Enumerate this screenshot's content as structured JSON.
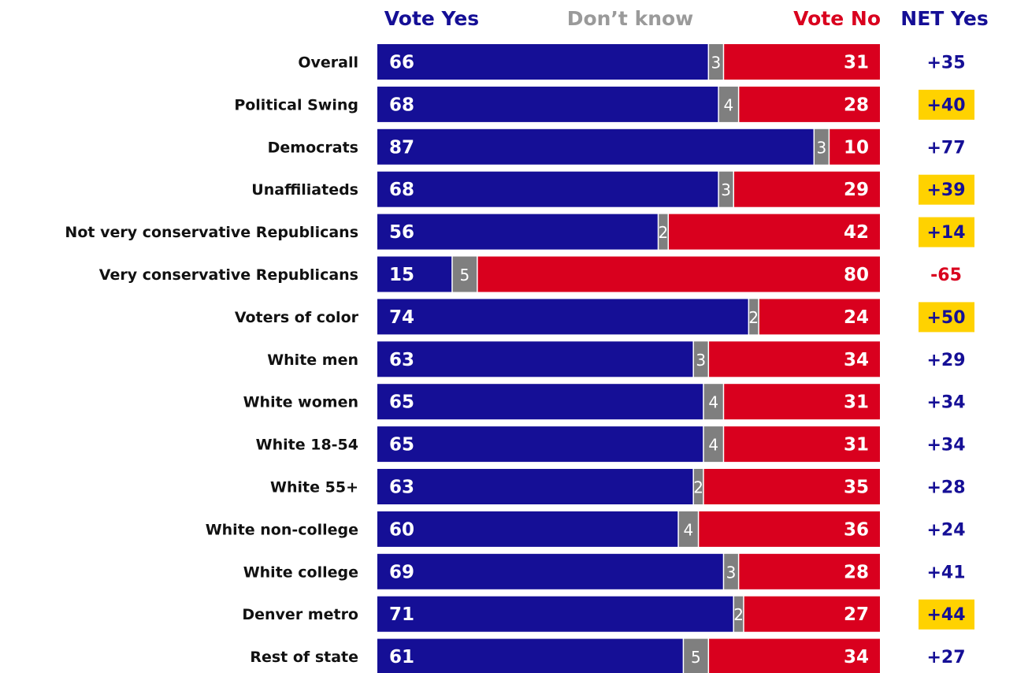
{
  "chart_data": {
    "type": "bar",
    "stacked": true,
    "orientation": "horizontal",
    "headers": {
      "yes": "Vote Yes",
      "dk": "Don’t know",
      "no": "Vote No",
      "net": "NET Yes"
    },
    "colors": {
      "yes": "#150F96",
      "dk": "#7F7F7F",
      "no": "#D9001E",
      "dk_header": "#9A9A9A",
      "net_positive": "#150F96",
      "net_negative": "#D9001E",
      "highlight": "#FFD200"
    },
    "categories": [
      "Overall",
      "Political Swing",
      "Democrats",
      "Unaffiliateds",
      "Not very conservative Republicans",
      "Very conservative Republicans",
      "Voters of color",
      "White men",
      "White women",
      "White 18-54",
      "White 55+",
      "White non-college",
      "White college",
      "Denver metro",
      "Rest of state"
    ],
    "series": [
      {
        "name": "Vote Yes",
        "values": [
          66,
          68,
          87,
          68,
          56,
          15,
          74,
          63,
          65,
          65,
          63,
          60,
          69,
          71,
          61
        ]
      },
      {
        "name": "Don’t know",
        "values": [
          3,
          4,
          3,
          3,
          2,
          5,
          2,
          3,
          4,
          4,
          2,
          4,
          3,
          2,
          5
        ]
      },
      {
        "name": "Vote No",
        "values": [
          31,
          28,
          10,
          29,
          42,
          80,
          24,
          34,
          31,
          31,
          35,
          36,
          28,
          27,
          34
        ]
      }
    ],
    "net": [
      "+35",
      "+40",
      "+77",
      "+39",
      "+14",
      "-65",
      "+50",
      "+29",
      "+34",
      "+34",
      "+28",
      "+24",
      "+41",
      "+44",
      "+27"
    ],
    "net_highlighted": [
      false,
      true,
      false,
      true,
      true,
      false,
      true,
      false,
      false,
      false,
      false,
      false,
      false,
      true,
      false
    ],
    "xlim": [
      0,
      100
    ]
  }
}
